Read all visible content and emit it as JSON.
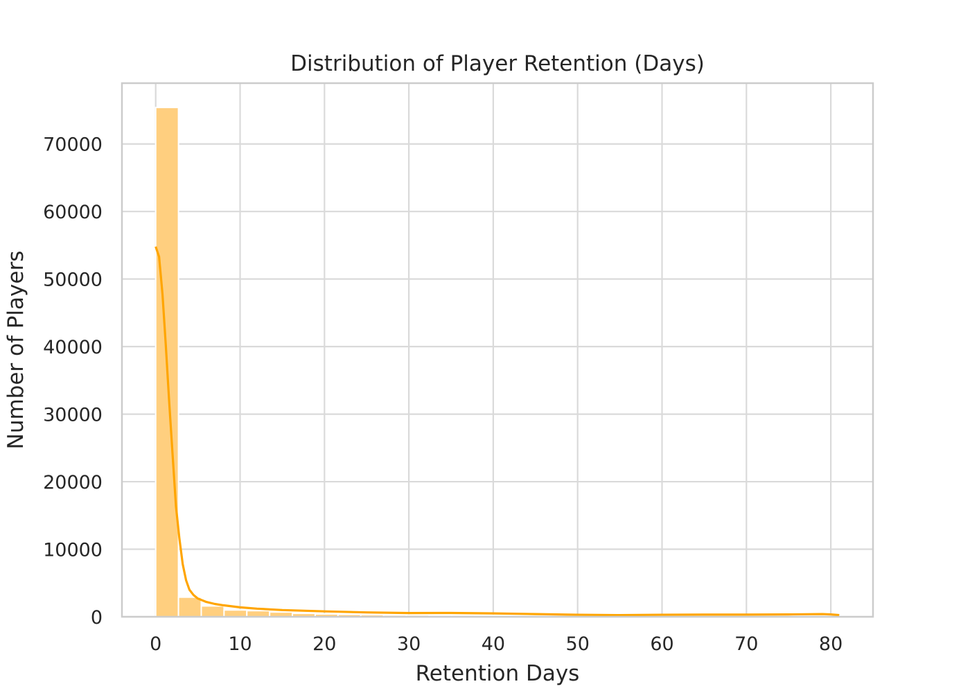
{
  "chart_data": {
    "type": "bar",
    "title": "Distribution of Player Retention (Days)",
    "xlabel": "Retention Days",
    "ylabel": "Number of Players",
    "xlim": [
      -4,
      85
    ],
    "ylim": [
      0,
      79000
    ],
    "xticks": [
      0,
      10,
      20,
      30,
      40,
      50,
      60,
      70,
      80
    ],
    "yticks": [
      0,
      10000,
      20000,
      30000,
      40000,
      50000,
      60000,
      70000
    ],
    "grid": true,
    "bar_color": "#ffcf7f",
    "line_color": "#ffa500",
    "histogram": {
      "bin_edges": [
        0,
        2.7,
        5.4,
        8.1,
        10.8,
        13.5,
        16.2,
        18.9,
        21.6,
        24.3,
        27.0,
        29.7,
        32.4,
        35.1,
        37.8,
        40.5,
        43.2,
        45.9,
        48.6,
        51.3,
        54.0,
        56.7,
        59.4,
        62.1,
        64.8,
        67.5,
        70.2,
        72.9,
        75.6,
        78.3,
        81.0
      ],
      "counts": [
        75400,
        2900,
        1600,
        1000,
        900,
        700,
        500,
        400,
        350,
        300,
        250,
        250,
        220,
        220,
        200,
        200,
        180,
        160,
        150,
        150,
        140,
        140,
        140,
        140,
        150,
        150,
        150,
        150,
        160,
        160
      ]
    },
    "kde": {
      "x": [
        0,
        0.4,
        0.8,
        1.2,
        1.6,
        2.0,
        2.4,
        2.8,
        3.2,
        3.6,
        4.0,
        4.5,
        5.0,
        6,
        7,
        8,
        10,
        12,
        15,
        20,
        25,
        30,
        35,
        40,
        45,
        50,
        55,
        60,
        65,
        70,
        75,
        79,
        80,
        81
      ],
      "y": [
        54800,
        53300,
        47800,
        40200,
        31800,
        24000,
        16300,
        11700,
        7800,
        5400,
        4000,
        3200,
        2700,
        2200,
        1900,
        1700,
        1400,
        1200,
        1000,
        800,
        650,
        550,
        560,
        500,
        400,
        300,
        250,
        300,
        320,
        320,
        350,
        400,
        350,
        250
      ]
    }
  }
}
